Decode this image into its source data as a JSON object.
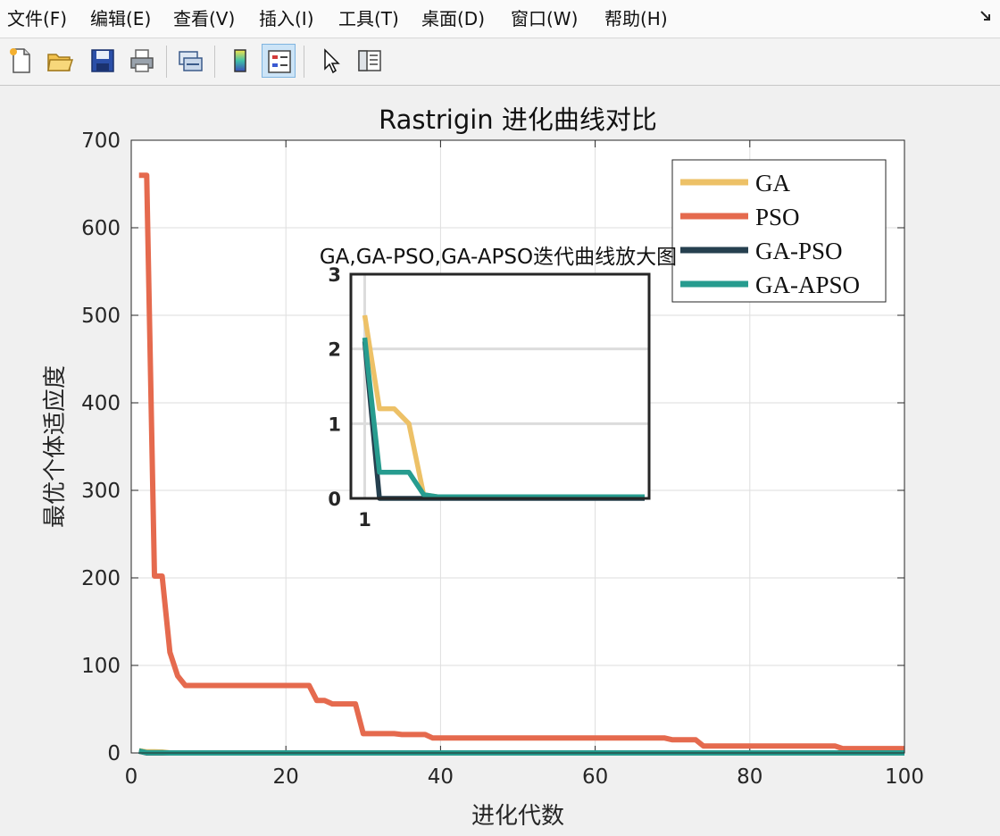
{
  "menubar": {
    "items": [
      {
        "label": "文件(F)"
      },
      {
        "label": "编辑(E)"
      },
      {
        "label": "查看(V)"
      },
      {
        "label": "插入(I)"
      },
      {
        "label": "工具(T)"
      },
      {
        "label": "桌面(D)"
      },
      {
        "label": "窗口(W)"
      },
      {
        "label": "帮助(H)"
      }
    ],
    "corner_icon": "dock-arrow-icon"
  },
  "toolbar": {
    "buttons": [
      {
        "icon": "new-file-icon"
      },
      {
        "icon": "open-folder-icon"
      },
      {
        "icon": "save-icon"
      },
      {
        "icon": "print-icon"
      },
      {
        "icon": "link-figure-icon"
      },
      {
        "icon": "colorbar-icon"
      },
      {
        "icon": "legend-icon",
        "active": true
      },
      {
        "icon": "pointer-icon"
      },
      {
        "icon": "property-panel-icon"
      }
    ]
  },
  "colors": {
    "GA": "#edc167",
    "PSO": "#e56a4e",
    "GA-PSO": "#26404f",
    "GA-APSO": "#279c8f"
  },
  "chart_data": [
    {
      "type": "line",
      "title": "Rastrigin 进化曲线对比",
      "xlabel": "进化代数",
      "ylabel": "最优个体适应度",
      "xlim": [
        0,
        100
      ],
      "ylim": [
        0,
        700
      ],
      "xticks": [
        0,
        20,
        40,
        60,
        80,
        100
      ],
      "yticks": [
        0,
        100,
        200,
        300,
        400,
        500,
        600,
        700
      ],
      "grid": true,
      "legend": "top-right",
      "series": [
        {
          "name": "GA",
          "points": [
            [
              1,
              2.45
            ],
            [
              2,
              1.2
            ],
            [
              3,
              1.2
            ],
            [
              4,
              1.0
            ],
            [
              5,
              0.05
            ],
            [
              6,
              0.02
            ],
            [
              100,
              0.02
            ]
          ]
        },
        {
          "name": "PSO",
          "points": [
            [
              1,
              660
            ],
            [
              2,
              660
            ],
            [
              3,
              202
            ],
            [
              4,
              202
            ],
            [
              5,
              115
            ],
            [
              6,
              88
            ],
            [
              7,
              77
            ],
            [
              23,
              77
            ],
            [
              24,
              60
            ],
            [
              25,
              60
            ],
            [
              26,
              56
            ],
            [
              29,
              56
            ],
            [
              30,
              22
            ],
            [
              34,
              22
            ],
            [
              35,
              21
            ],
            [
              38,
              21
            ],
            [
              39,
              17
            ],
            [
              69,
              17
            ],
            [
              70,
              15
            ],
            [
              73,
              15
            ],
            [
              74,
              8
            ],
            [
              91,
              8
            ],
            [
              92,
              5
            ],
            [
              100,
              5
            ]
          ]
        },
        {
          "name": "GA-PSO",
          "points": [
            [
              1,
              2.1
            ],
            [
              2,
              0.0
            ],
            [
              100,
              0.0
            ]
          ]
        },
        {
          "name": "GA-APSO",
          "points": [
            [
              1,
              2.15
            ],
            [
              2,
              0.35
            ],
            [
              3,
              0.35
            ],
            [
              4,
              0.35
            ],
            [
              5,
              0.05
            ],
            [
              6,
              0.02
            ],
            [
              100,
              0.02
            ]
          ]
        }
      ]
    },
    {
      "type": "line",
      "title": "GA,GA-PSO,GA-APSO迭代曲线放大图",
      "xticks": [
        1
      ],
      "yticks": [
        0,
        1,
        2,
        3
      ],
      "ylim": [
        0,
        3
      ],
      "grid": true,
      "series": [
        {
          "name": "GA",
          "points": [
            [
              1,
              2.45
            ],
            [
              2,
              1.2
            ],
            [
              3,
              1.2
            ],
            [
              4,
              1.0
            ],
            [
              5,
              0.05
            ],
            [
              6,
              0.02
            ],
            [
              20,
              0.02
            ]
          ]
        },
        {
          "name": "GA-PSO",
          "points": [
            [
              1,
              2.1
            ],
            [
              2,
              0.0
            ],
            [
              20,
              0.0
            ]
          ]
        },
        {
          "name": "GA-APSO",
          "points": [
            [
              1,
              2.15
            ],
            [
              2,
              0.35
            ],
            [
              3,
              0.35
            ],
            [
              4,
              0.35
            ],
            [
              5,
              0.05
            ],
            [
              6,
              0.02
            ],
            [
              20,
              0.02
            ]
          ]
        }
      ]
    }
  ]
}
